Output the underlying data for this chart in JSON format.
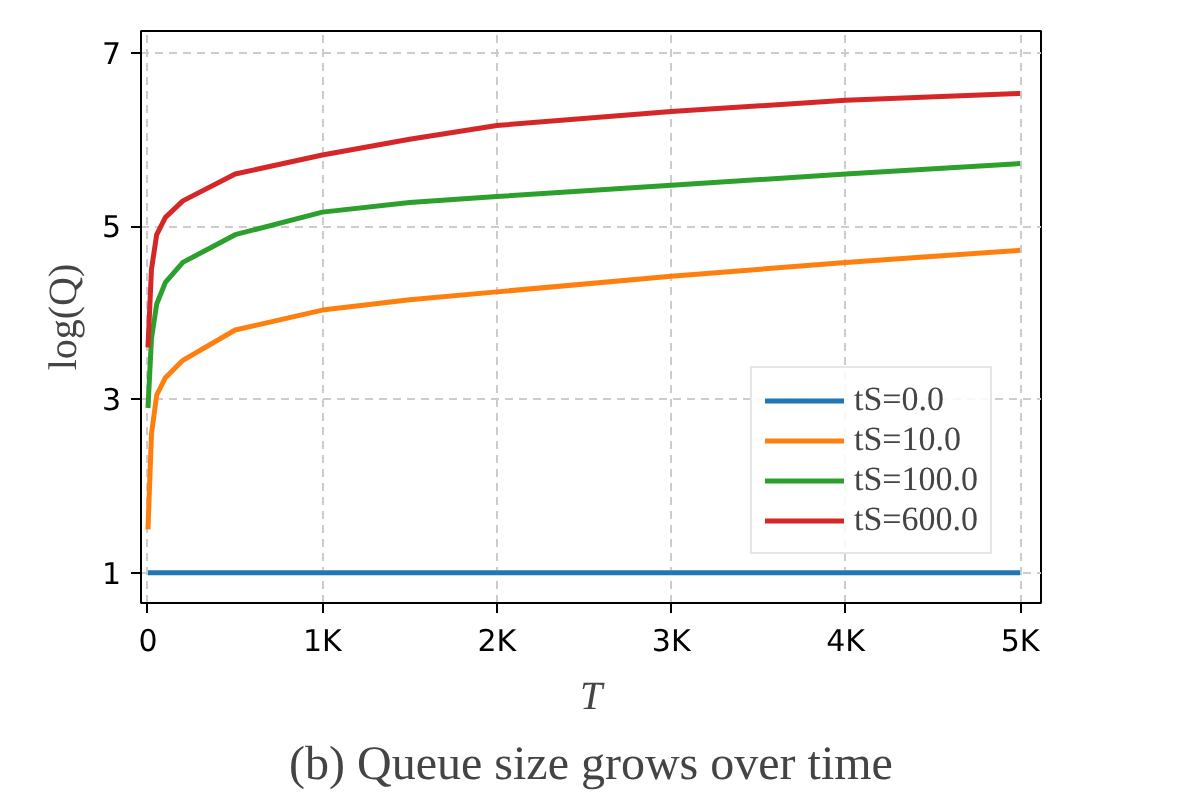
{
  "chart_data": {
    "type": "line",
    "title": "(b) Queue size grows over time",
    "xlabel": "T",
    "ylabel": "log(Q)",
    "x": [
      0,
      20,
      50,
      100,
      200,
      500,
      1000,
      1500,
      2000,
      3000,
      4000,
      5000
    ],
    "series": [
      {
        "name": "tS=0.0",
        "color": "#1f77b4",
        "values": [
          1,
          1,
          1,
          1,
          1,
          1,
          1,
          1,
          1,
          1,
          1,
          1
        ]
      },
      {
        "name": "tS=10.0",
        "color": "#ff7f0e",
        "values": [
          1.5,
          2.6,
          3.05,
          3.25,
          3.45,
          3.8,
          4.03,
          4.15,
          4.24,
          4.42,
          4.58,
          4.72
        ]
      },
      {
        "name": "tS=100.0",
        "color": "#2ca02c",
        "values": [
          2.9,
          3.7,
          4.1,
          4.35,
          4.58,
          4.9,
          5.16,
          5.27,
          5.34,
          5.47,
          5.6,
          5.72
        ]
      },
      {
        "name": "tS=600.0",
        "color": "#d62728",
        "values": [
          3.6,
          4.5,
          4.9,
          5.1,
          5.29,
          5.6,
          5.82,
          6.0,
          6.16,
          6.32,
          6.45,
          6.53
        ]
      }
    ],
    "xlim": [
      -40,
      5120
    ],
    "ylim": [
      0.65,
      7.25
    ],
    "xticks": [
      0,
      {
        "value": 1000,
        "label": "1K"
      },
      {
        "value": 2000,
        "label": "2K"
      },
      {
        "value": 3000,
        "label": "3K"
      },
      {
        "value": 4000,
        "label": "4K"
      },
      {
        "value": 5000,
        "label": "5K"
      }
    ],
    "yticks": [
      1,
      3,
      5,
      7
    ],
    "grid": true,
    "legend": "right",
    "line_style": "solid",
    "marker": "none"
  }
}
